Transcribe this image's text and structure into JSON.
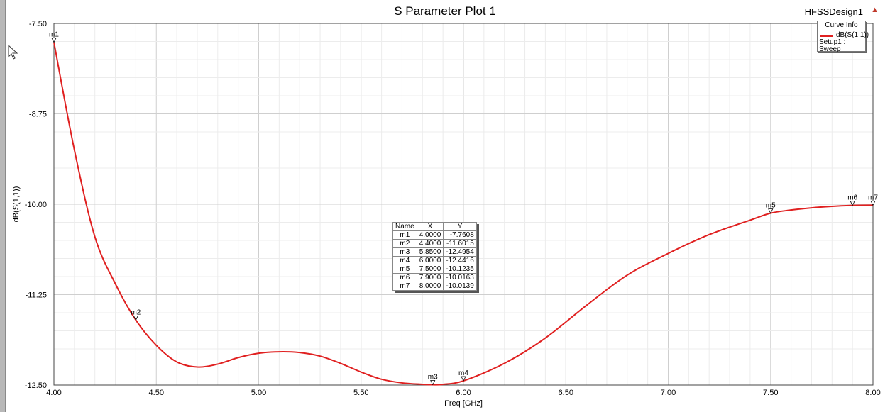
{
  "app": {
    "design_name": "HFSSDesign1"
  },
  "legend": {
    "header": "Curve Info",
    "entry": "dB(S(1,1))",
    "sub": "Setup1 : Sweep"
  },
  "marker_table": {
    "headers": [
      "Name",
      "X",
      "Y"
    ],
    "rows": [
      [
        "m1",
        "4.0000",
        "-7.7608"
      ],
      [
        "m2",
        "4.4000",
        "-11.6015"
      ],
      [
        "m3",
        "5.8500",
        "-12.4954"
      ],
      [
        "m4",
        "6.0000",
        "-12.4416"
      ],
      [
        "m5",
        "7.5000",
        "-10.1235"
      ],
      [
        "m6",
        "7.9000",
        "-10.0163"
      ],
      [
        "m7",
        "8.0000",
        "-10.0139"
      ]
    ]
  },
  "chart_data": {
    "type": "line",
    "title": "S Parameter Plot 1",
    "xlabel": "Freq [GHz]",
    "ylabel": "dB(S(1,1))",
    "xlim": [
      4.0,
      8.0
    ],
    "ylim": [
      -12.5,
      -7.5
    ],
    "x_ticks": [
      "4.00",
      "4.50",
      "5.00",
      "5.50",
      "6.00",
      "6.50",
      "7.00",
      "7.50",
      "8.00"
    ],
    "y_ticks": [
      "-7.50",
      "-8.75",
      "-10.00",
      "-11.25",
      "-12.50"
    ],
    "grid": true,
    "legend_position": "top-right",
    "series": [
      {
        "name": "dB(S(1,1))",
        "color": "#e02020",
        "x": [
          4.0,
          4.1,
          4.2,
          4.3,
          4.4,
          4.5,
          4.6,
          4.7,
          4.8,
          4.9,
          5.0,
          5.1,
          5.2,
          5.3,
          5.4,
          5.5,
          5.6,
          5.7,
          5.8,
          5.85,
          5.9,
          6.0,
          6.2,
          6.4,
          6.6,
          6.8,
          7.0,
          7.2,
          7.4,
          7.5,
          7.6,
          7.7,
          7.8,
          7.9,
          8.0
        ],
        "y": [
          -7.7608,
          -9.25,
          -10.45,
          -11.1,
          -11.6015,
          -11.95,
          -12.18,
          -12.25,
          -12.21,
          -12.12,
          -12.06,
          -12.04,
          -12.05,
          -12.1,
          -12.2,
          -12.32,
          -12.42,
          -12.47,
          -12.49,
          -12.4954,
          -12.49,
          -12.4416,
          -12.2,
          -11.85,
          -11.4,
          -10.98,
          -10.68,
          -10.42,
          -10.22,
          -10.1235,
          -10.08,
          -10.05,
          -10.03,
          -10.0163,
          -10.0139
        ]
      }
    ],
    "markers": [
      {
        "name": "m1",
        "x": 4.0,
        "y": -7.7608
      },
      {
        "name": "m2",
        "x": 4.4,
        "y": -11.6015
      },
      {
        "name": "m3",
        "x": 5.85,
        "y": -12.4954
      },
      {
        "name": "m4",
        "x": 6.0,
        "y": -12.4416
      },
      {
        "name": "m5",
        "x": 7.5,
        "y": -10.1235
      },
      {
        "name": "m6",
        "x": 7.9,
        "y": -10.0163
      },
      {
        "name": "m7",
        "x": 8.0,
        "y": -10.0139
      }
    ]
  }
}
